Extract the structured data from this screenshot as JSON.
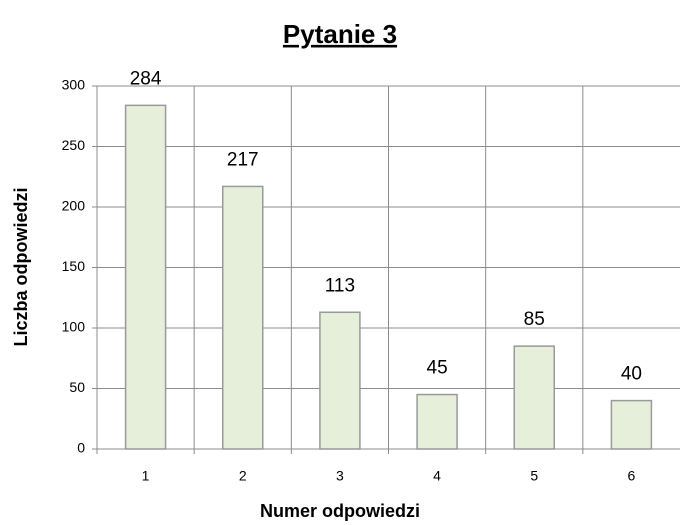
{
  "chart_data": {
    "type": "bar",
    "title": "Pytanie 3",
    "x_label": "Numer odpowiedzi",
    "y_label": "Liczba odpowiedzi",
    "categories": [
      "1",
      "2",
      "3",
      "4",
      "5",
      "6"
    ],
    "values": [
      284,
      217,
      113,
      45,
      85,
      40
    ],
    "color": "#e6efd9",
    "ylim": [
      0,
      300
    ],
    "yticks": [
      0,
      50,
      100,
      150,
      200,
      250,
      300
    ],
    "grid": true
  }
}
